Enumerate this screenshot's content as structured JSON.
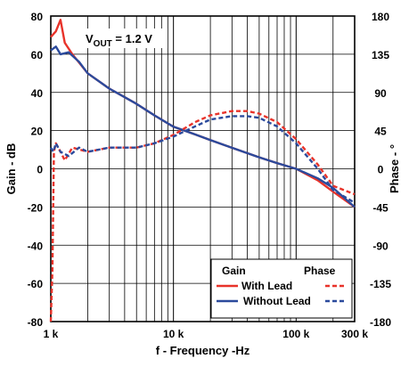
{
  "chart_data": {
    "type": "line",
    "title": "",
    "annotation": "V_OUT = 1.2 V",
    "xlabel": "f - Frequency -Hz",
    "ylabel_left": "Gain - dB",
    "ylabel_right": "Phase - °",
    "x_scale": "log",
    "xlim": [
      1000,
      300000
    ],
    "x_ticks": [
      1000,
      10000,
      100000,
      300000
    ],
    "x_tick_labels": [
      "1 k",
      "10 k",
      "100 k",
      "300 k"
    ],
    "ylim_left": [
      -80,
      80
    ],
    "y_ticks_left": [
      80,
      60,
      40,
      20,
      0,
      -20,
      -40,
      -60,
      -80
    ],
    "ylim_right": [
      -180,
      180
    ],
    "y_ticks_right": [
      180,
      135,
      90,
      45,
      0,
      -45,
      -90,
      -135,
      -180
    ],
    "grid": true,
    "legend": {
      "placement": "bottom-right",
      "col_headers": [
        "Gain",
        "Phase"
      ],
      "entries": [
        "With Lead",
        "Without Lead"
      ]
    },
    "series": [
      {
        "name": "With Lead",
        "kind": "gain",
        "axis": "left",
        "color": "#e8332a",
        "dash": "solid",
        "x": [
          1000,
          1100,
          1200,
          1300,
          1500,
          2000,
          3000,
          5000,
          7000,
          10000,
          15000,
          20000,
          30000,
          50000,
          70000,
          100000,
          150000,
          200000,
          300000
        ],
        "y": [
          69,
          72,
          78,
          66,
          60,
          50,
          42,
          34,
          28,
          22,
          18,
          15,
          11,
          6,
          3,
          0,
          -6,
          -12,
          -20
        ]
      },
      {
        "name": "Without Lead",
        "kind": "gain",
        "axis": "left",
        "color": "#2b4a9c",
        "dash": "solid",
        "x": [
          1000,
          1100,
          1200,
          1400,
          1700,
          2000,
          3000,
          5000,
          7000,
          10000,
          15000,
          20000,
          30000,
          50000,
          70000,
          100000,
          150000,
          200000,
          300000
        ],
        "y": [
          62,
          64,
          60,
          61,
          56,
          50,
          42,
          34,
          28,
          22,
          18,
          15,
          11,
          6,
          3,
          0,
          -5,
          -10,
          -20
        ]
      },
      {
        "name": "With Lead",
        "kind": "phase",
        "axis": "right",
        "color": "#e8332a",
        "dash": "dashed",
        "x": [
          1000,
          1030,
          1060,
          1100,
          1150,
          1200,
          1300,
          1500,
          2000,
          3000,
          5000,
          7000,
          10000,
          15000,
          20000,
          30000,
          40000,
          50000,
          70000,
          100000,
          150000,
          200000,
          300000
        ],
        "y": [
          -180,
          -120,
          20,
          30,
          25,
          20,
          10,
          25,
          20,
          25,
          25,
          30,
          40,
          55,
          63,
          68,
          68,
          65,
          55,
          35,
          5,
          -20,
          -30
        ]
      },
      {
        "name": "Without Lead",
        "kind": "phase",
        "axis": "right",
        "color": "#2b4a9c",
        "dash": "dashed",
        "x": [
          1000,
          1050,
          1100,
          1200,
          1400,
          1700,
          2000,
          3000,
          5000,
          7000,
          10000,
          15000,
          20000,
          30000,
          40000,
          50000,
          70000,
          100000,
          150000,
          200000,
          300000
        ],
        "y": [
          25,
          20,
          30,
          20,
          15,
          25,
          20,
          25,
          25,
          30,
          38,
          50,
          58,
          62,
          62,
          60,
          50,
          30,
          0,
          -25,
          -40
        ]
      }
    ]
  }
}
